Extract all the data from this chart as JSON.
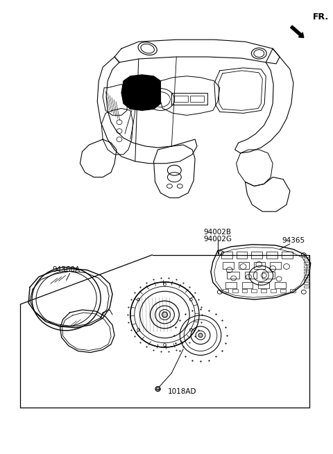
{
  "bg_color": "#ffffff",
  "line_color": "#000000",
  "fr_text": "FR.",
  "labels": {
    "part1": "94002B",
    "part2": "94002G",
    "part3": "94365",
    "part4": "94360A",
    "part5": "1018AD"
  },
  "fig_width": 4.8,
  "fig_height": 6.55,
  "dpi": 100
}
